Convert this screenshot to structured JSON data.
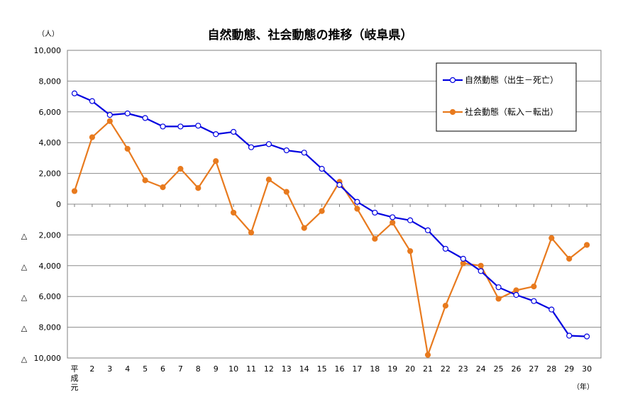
{
  "chart_data": {
    "type": "line",
    "title": "自然動態、社会動態の推移（岐阜県）",
    "y_unit": "（人）",
    "x_unit": "（年）",
    "x_labels": [
      "平成元",
      "2",
      "3",
      "4",
      "5",
      "6",
      "7",
      "8",
      "9",
      "10",
      "11",
      "12",
      "13",
      "14",
      "15",
      "16",
      "17",
      "18",
      "19",
      "20",
      "21",
      "22",
      "23",
      "24",
      "25",
      "26",
      "27",
      "28",
      "29",
      "30"
    ],
    "first_tick_lines": [
      "平",
      "成",
      "元"
    ],
    "ylim": [
      -10000,
      10000
    ],
    "y_ticks": [
      {
        "value": 10000,
        "label": "10,000"
      },
      {
        "value": 8000,
        "label": "8,000"
      },
      {
        "value": 6000,
        "label": "6,000"
      },
      {
        "value": 4000,
        "label": "4,000"
      },
      {
        "value": 2000,
        "label": "2,000"
      },
      {
        "value": 0,
        "label": "0"
      },
      {
        "value": -2000,
        "label": "2,000"
      },
      {
        "value": -4000,
        "label": "4,000"
      },
      {
        "value": -6000,
        "label": "6,000"
      },
      {
        "value": -8000,
        "label": "8,000"
      },
      {
        "value": -10000,
        "label": "10,000"
      }
    ],
    "negative_marker": "△",
    "grid": true,
    "legend_position": "top-right",
    "series": [
      {
        "name": "自然動態（出生－死亡）",
        "color": "#0000e0",
        "marker": "open-circle",
        "values": [
          7200,
          6700,
          5800,
          5900,
          5600,
          5050,
          5050,
          5100,
          4550,
          4700,
          3700,
          3900,
          3500,
          3350,
          2300,
          1250,
          150,
          -550,
          -850,
          -1050,
          -1700,
          -2900,
          -3550,
          -4350,
          -5400,
          -5900,
          -6300,
          -6850,
          -8550,
          -8600
        ]
      },
      {
        "name": "社会動態（転入－転出）",
        "color": "#e87a1e",
        "marker": "filled-circle",
        "values": [
          850,
          4350,
          5400,
          3600,
          1550,
          1100,
          2300,
          1050,
          2800,
          -550,
          -1850,
          1600,
          800,
          -1550,
          -450,
          1450,
          -300,
          -2250,
          -1200,
          -3050,
          -9800,
          -6600,
          -3850,
          -4000,
          -6150,
          -5600,
          -5350,
          -2200,
          -3550,
          -2650
        ]
      }
    ]
  }
}
